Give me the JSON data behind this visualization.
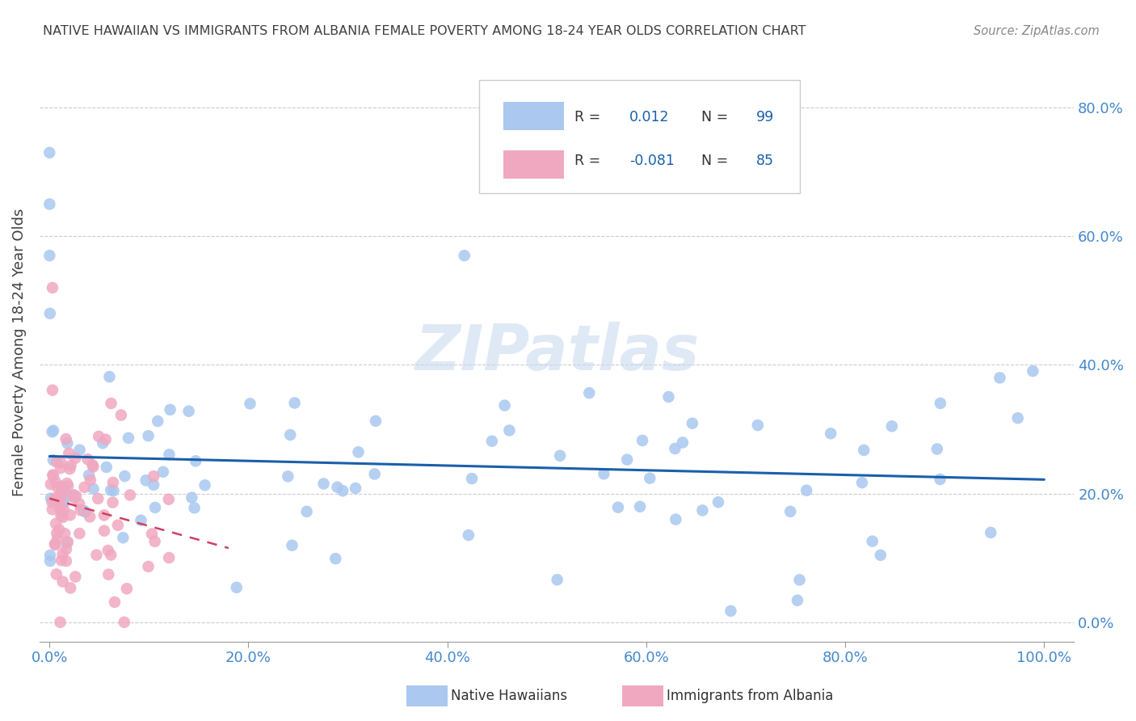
{
  "title": "NATIVE HAWAIIAN VS IMMIGRANTS FROM ALBANIA FEMALE POVERTY AMONG 18-24 YEAR OLDS CORRELATION CHART",
  "source": "Source: ZipAtlas.com",
  "ylabel": "Female Poverty Among 18-24 Year Olds",
  "legend1_label": "Native Hawaiians",
  "legend2_label": "Immigrants from Albania",
  "blue_R": "0.012",
  "blue_N": "99",
  "pink_R": "-0.081",
  "pink_N": "85",
  "blue_color": "#aac8f0",
  "pink_color": "#f0a8c0",
  "blue_line_color": "#1a5faa",
  "pink_line_color": "#d04060",
  "axis_label_color": "#4488cc",
  "watermark": "ZIPatlas",
  "xlim": [
    0,
    100
  ],
  "ylim": [
    0,
    85
  ]
}
